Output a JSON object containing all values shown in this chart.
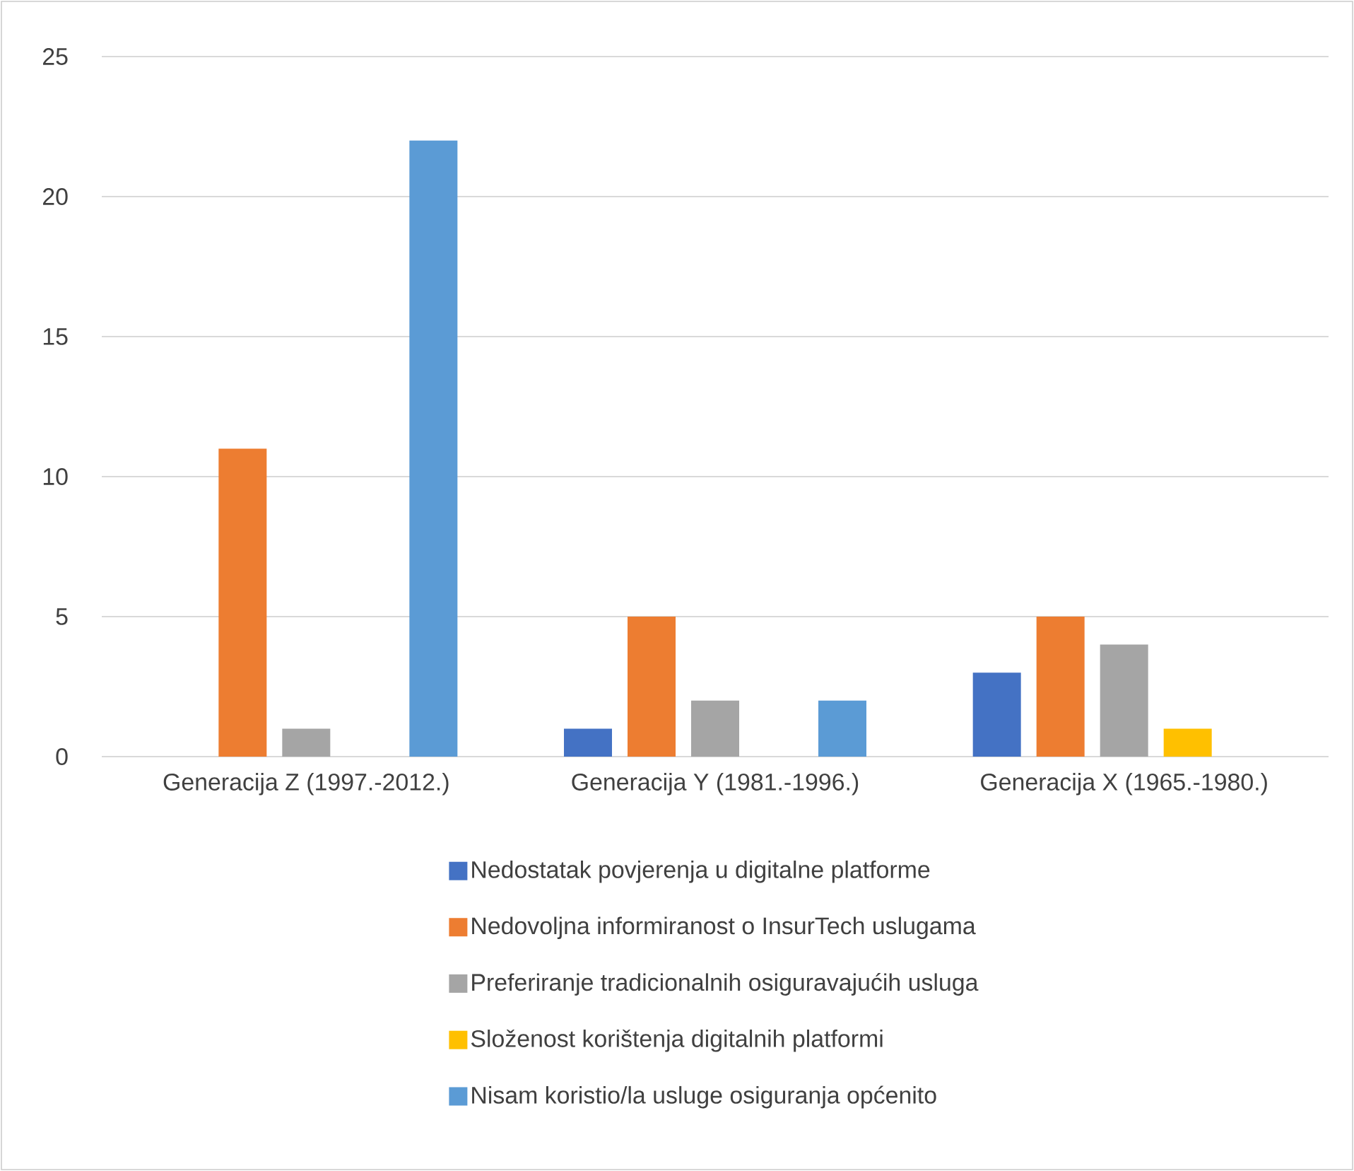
{
  "chart_data": {
    "type": "bar",
    "categories": [
      "Generacija Z (1997.-2012.)",
      "Generacija Y (1981.-1996.)",
      "Generacija X (1965.-1980.)"
    ],
    "series": [
      {
        "name": "Nedostatak povjerenja u digitalne platforme",
        "color": "#4472c4",
        "values": [
          0,
          1,
          3
        ]
      },
      {
        "name": "Nedovoljna informiranost o InsurTech uslugama",
        "color": "#ed7d31",
        "values": [
          11,
          5,
          5
        ]
      },
      {
        "name": "Preferiranje tradicionalnih osiguravajućih usluga",
        "color": "#a5a5a5",
        "values": [
          1,
          2,
          4
        ]
      },
      {
        "name": "Složenost korištenja digitalnih platformi",
        "color": "#ffc000",
        "values": [
          0,
          0,
          1
        ]
      },
      {
        "name": "Nisam koristio/la usluge osiguranja općenito",
        "color": "#5b9bd5",
        "values": [
          22,
          2,
          0
        ]
      }
    ],
    "ylim": [
      0,
      25
    ],
    "yticks": [
      0,
      5,
      10,
      15,
      20,
      25
    ],
    "grid": "y",
    "legend": "bottom"
  }
}
